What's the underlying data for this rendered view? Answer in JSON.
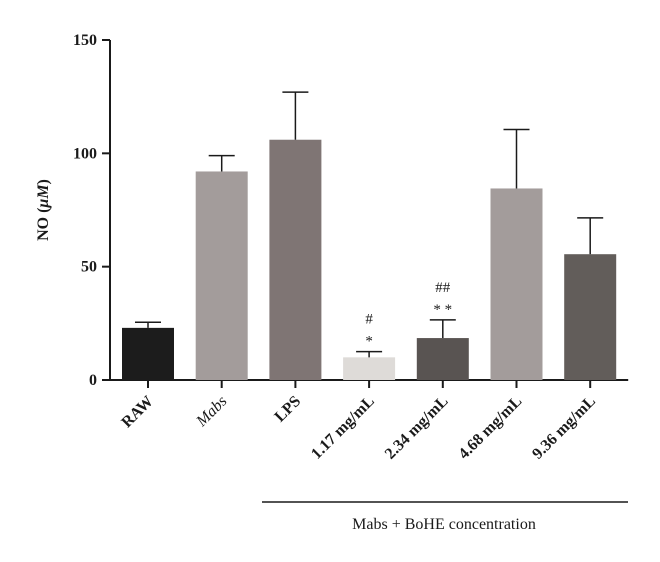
{
  "chart_data": {
    "type": "bar",
    "title": "",
    "ylabel_prefix": "NO (",
    "ylabel_unit": "μM",
    "ylabel_suffix": ")",
    "ylim": [
      0,
      150
    ],
    "yticks": [
      0,
      50,
      100,
      150
    ],
    "categories": [
      "RAW",
      "Mabs",
      "LPS",
      "1.17 mg/mL",
      "2.34 mg/mL",
      "4.68 mg/mL",
      "9.36 mg/mL"
    ],
    "italic_categories": [
      "Mabs"
    ],
    "values": [
      23,
      92,
      106,
      10,
      18.5,
      84.5,
      55.5
    ],
    "errors": [
      2.5,
      7,
      21,
      2.5,
      8,
      26,
      16
    ],
    "colors": [
      "#1c1c1c",
      "#a39c9b",
      "#7f7574",
      "#dedbd8",
      "#595452",
      "#a39c9b",
      "#625d5a"
    ],
    "annotations": [
      {
        "category": "1.17 mg/mL",
        "lines": [
          "#",
          "*"
        ]
      },
      {
        "category": "2.34 mg/mL",
        "lines": [
          "##",
          "**"
        ]
      }
    ],
    "group_label": "Mabs + BoHE concentration",
    "grid": false,
    "legend": "none"
  }
}
